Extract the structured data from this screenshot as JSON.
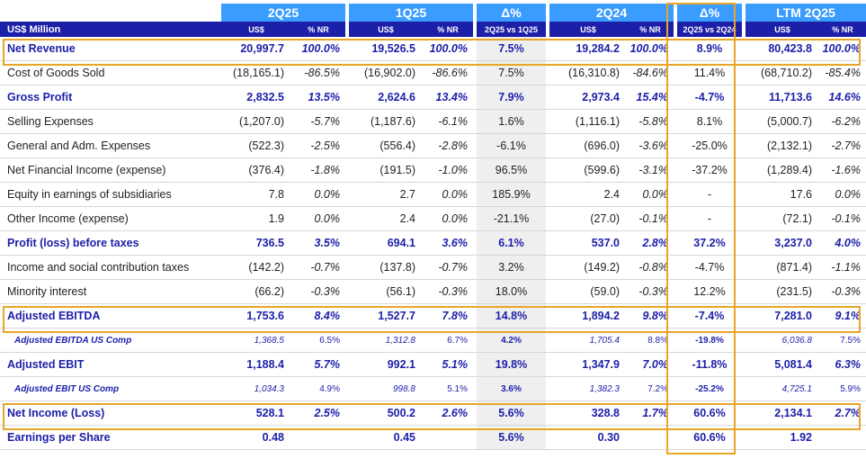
{
  "header": {
    "unit_label": "US$ Million",
    "groups": [
      "2Q25",
      "1Q25",
      "Δ%",
      "2Q24",
      "Δ%",
      "LTM 2Q25"
    ],
    "subheaders": [
      "US$",
      "% NR",
      "US$",
      "% NR",
      "2Q25 vs 1Q25",
      "US$",
      "% NR",
      "2Q25 vs 2Q24",
      "US$",
      "% NR"
    ]
  },
  "rows": [
    {
      "label": "Net Revenue",
      "cells": [
        "20,997.7",
        "100.0%",
        "19,526.5",
        "100.0%",
        "7.5%",
        "19,284.2",
        "100.0%",
        "8.9%",
        "80,423.8",
        "100.0%"
      ]
    },
    {
      "label": "Cost of Goods Sold",
      "cells": [
        "(18,165.1)",
        "-86.5%",
        "(16,902.0)",
        "-86.6%",
        "7.5%",
        "(16,310.8)",
        "-84.6%",
        "11.4%",
        "(68,710.2)",
        "-85.4%"
      ]
    },
    {
      "label": "Gross Profit",
      "cells": [
        "2,832.5",
        "13.5%",
        "2,624.6",
        "13.4%",
        "7.9%",
        "2,973.4",
        "15.4%",
        "-4.7%",
        "11,713.6",
        "14.6%"
      ]
    },
    {
      "label": "Selling Expenses",
      "cells": [
        "(1,207.0)",
        "-5.7%",
        "(1,187.6)",
        "-6.1%",
        "1.6%",
        "(1,116.1)",
        "-5.8%",
        "8.1%",
        "(5,000.7)",
        "-6.2%"
      ]
    },
    {
      "label": "General and Adm. Expenses",
      "cells": [
        "(522.3)",
        "-2.5%",
        "(556.4)",
        "-2.8%",
        "-6.1%",
        "(696.0)",
        "-3.6%",
        "-25.0%",
        "(2,132.1)",
        "-2.7%"
      ]
    },
    {
      "label": "Net Financial Income (expense)",
      "cells": [
        "(376.4)",
        "-1.8%",
        "(191.5)",
        "-1.0%",
        "96.5%",
        "(599.6)",
        "-3.1%",
        "-37.2%",
        "(1,289.4)",
        "-1.6%"
      ]
    },
    {
      "label": "Equity in earnings of subsidiaries",
      "cells": [
        "7.8",
        "0.0%",
        "2.7",
        "0.0%",
        "185.9%",
        "2.4",
        "0.0%",
        "-",
        "17.6",
        "0.0%"
      ]
    },
    {
      "label": "Other Income (expense)",
      "cells": [
        "1.9",
        "0.0%",
        "2.4",
        "0.0%",
        "-21.1%",
        "(27.0)",
        "-0.1%",
        "-",
        "(72.1)",
        "-0.1%"
      ]
    },
    {
      "label": "Profit (loss) before taxes",
      "cells": [
        "736.5",
        "3.5%",
        "694.1",
        "3.6%",
        "6.1%",
        "537.0",
        "2.8%",
        "37.2%",
        "3,237.0",
        "4.0%"
      ]
    },
    {
      "label": "Income and social contribution taxes",
      "cells": [
        "(142.2)",
        "-0.7%",
        "(137.8)",
        "-0.7%",
        "3.2%",
        "(149.2)",
        "-0.8%",
        "-4.7%",
        "(871.4)",
        "-1.1%"
      ]
    },
    {
      "label": "Minority interest",
      "cells": [
        "(66.2)",
        "-0.3%",
        "(56.1)",
        "-0.3%",
        "18.0%",
        "(59.0)",
        "-0.3%",
        "12.2%",
        "(231.5)",
        "-0.3%"
      ]
    },
    {
      "label": "Adjusted EBITDA",
      "cells": [
        "1,753.6",
        "8.4%",
        "1,527.7",
        "7.8%",
        "14.8%",
        "1,894.2",
        "9.8%",
        "-7.4%",
        "7,281.0",
        "9.1%"
      ]
    },
    {
      "label": "Adjusted EBITDA US Comp",
      "cells": [
        "1,368.5",
        "6.5%",
        "1,312.8",
        "6.7%",
        "4.2%",
        "1,705.4",
        "8.8%",
        "-19.8%",
        "6,036.8",
        "7.5%"
      ]
    },
    {
      "label": "Adjusted EBIT",
      "cells": [
        "1,188.4",
        "5.7%",
        "992.1",
        "5.1%",
        "19.8%",
        "1,347.9",
        "7.0%",
        "-11.8%",
        "5,081.4",
        "6.3%"
      ]
    },
    {
      "label": "Adjusted EBIT US Comp",
      "cells": [
        "1,034.3",
        "4.9%",
        "998.8",
        "5.1%",
        "3.6%",
        "1,382.3",
        "7.2%",
        "-25.2%",
        "4,725.1",
        "5.9%"
      ]
    },
    {
      "label": "Net Income (Loss)",
      "cells": [
        "528.1",
        "2.5%",
        "500.2",
        "2.6%",
        "5.6%",
        "328.8",
        "1.7%",
        "60.6%",
        "2,134.1",
        "2.7%"
      ]
    },
    {
      "label": "Earnings per Share",
      "cells": [
        "0.48",
        "",
        "0.45",
        "",
        "5.6%",
        "0.30",
        "",
        "60.6%",
        "1.92",
        ""
      ]
    }
  ],
  "colors": {
    "header_blue": "#3b9cff",
    "header_navy": "#1c1fa8",
    "highlight_outline": "#e9a527",
    "delta_shade": "#efefef"
  }
}
